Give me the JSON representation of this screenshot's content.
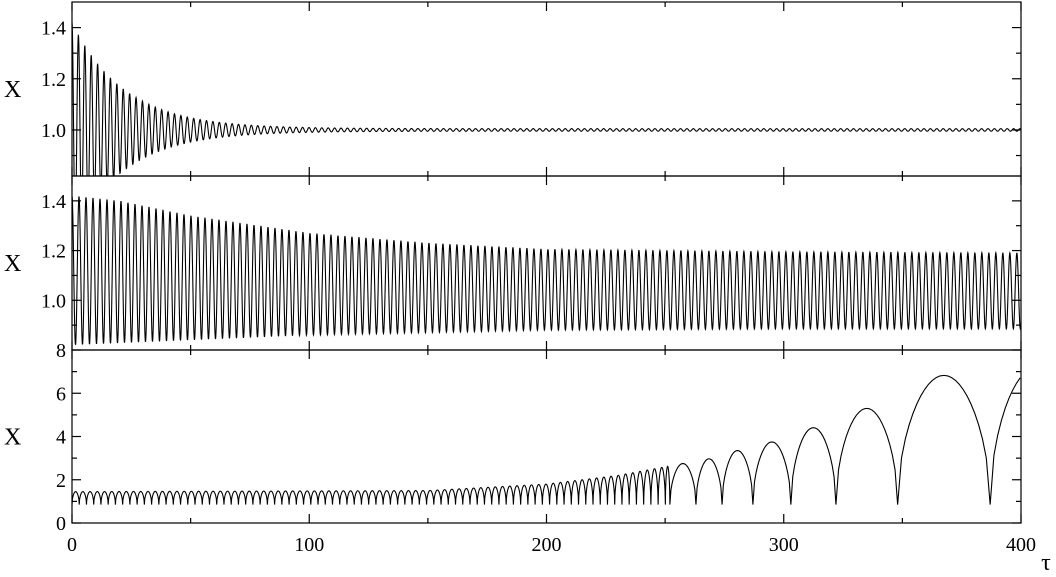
{
  "chart_data": [
    {
      "type": "line",
      "panel": "top",
      "ylabel": "X",
      "xlabel": "",
      "xlim": [
        0,
        400
      ],
      "ylim": [
        0.82,
        1.5
      ],
      "y_ticks": [
        1.0,
        1.2,
        1.4
      ],
      "y_tick_labels": [
        "1.0",
        "1.2",
        "1.4"
      ],
      "series": [
        {
          "description_points": [
            [
              0,
              1.42
            ],
            [
              0,
              0.86
            ],
            [
              10,
              1.2
            ],
            [
              30,
              1.1
            ],
            [
              60,
              1.05
            ],
            [
              100,
              1.03
            ],
            [
              200,
              1.015
            ],
            [
              300,
              1.01
            ],
            [
              400,
              1.005
            ]
          ],
          "mean": 1.0,
          "initial_amplitude": 0.42,
          "final_amplitude": 0.005,
          "period": 2.7
        }
      ]
    },
    {
      "type": "line",
      "panel": "middle",
      "ylabel": "X",
      "xlabel": "",
      "xlim": [
        0,
        400
      ],
      "ylim": [
        0.8,
        1.5
      ],
      "y_ticks": [
        1.0,
        1.2,
        1.4
      ],
      "y_tick_labels": [
        "1.0",
        "1.2",
        "1.4"
      ],
      "series": [
        {
          "max_envelope": [
            [
              0,
              1.42
            ],
            [
              20,
              1.4
            ],
            [
              50,
              1.34
            ],
            [
              100,
              1.27
            ],
            [
              150,
              1.23
            ],
            [
              200,
              1.205
            ],
            [
              300,
              1.195
            ],
            [
              400,
              1.19
            ]
          ],
          "min_envelope": [
            [
              0,
              0.82
            ],
            [
              50,
              0.84
            ],
            [
              100,
              0.86
            ],
            [
              200,
              0.88
            ],
            [
              300,
              0.885
            ],
            [
              400,
              0.885
            ]
          ],
          "period": 2.95
        }
      ]
    },
    {
      "type": "line",
      "panel": "bottom",
      "ylabel": "X",
      "xlabel": "τ",
      "xlim": [
        0,
        400
      ],
      "ylim": [
        0,
        8
      ],
      "y_ticks": [
        0,
        2,
        4,
        6,
        8
      ],
      "y_tick_labels": [
        "0",
        "2",
        "4",
        "6",
        "8"
      ],
      "x_ticks": [
        0,
        100,
        200,
        300,
        400
      ],
      "x_tick_labels": [
        "0",
        "100",
        "200",
        "300",
        "400"
      ],
      "series": [
        {
          "minimum": 0.85,
          "arch_peaks": [
            [
              3,
              1.45
            ],
            [
              150,
              1.5
            ],
            [
              200,
              1.8
            ],
            [
              230,
              2.2
            ],
            [
              250,
              2.6
            ],
            [
              270,
              3.0
            ],
            [
              285,
              3.5
            ],
            [
              295,
              3.75
            ],
            [
              311,
              4.35
            ],
            [
              335,
              5.3
            ],
            [
              368,
              6.85
            ],
            [
              400,
              7.15
            ]
          ],
          "arch_minima_x": [
            252,
            263,
            274,
            287,
            303,
            322,
            348,
            387
          ]
        }
      ]
    }
  ]
}
